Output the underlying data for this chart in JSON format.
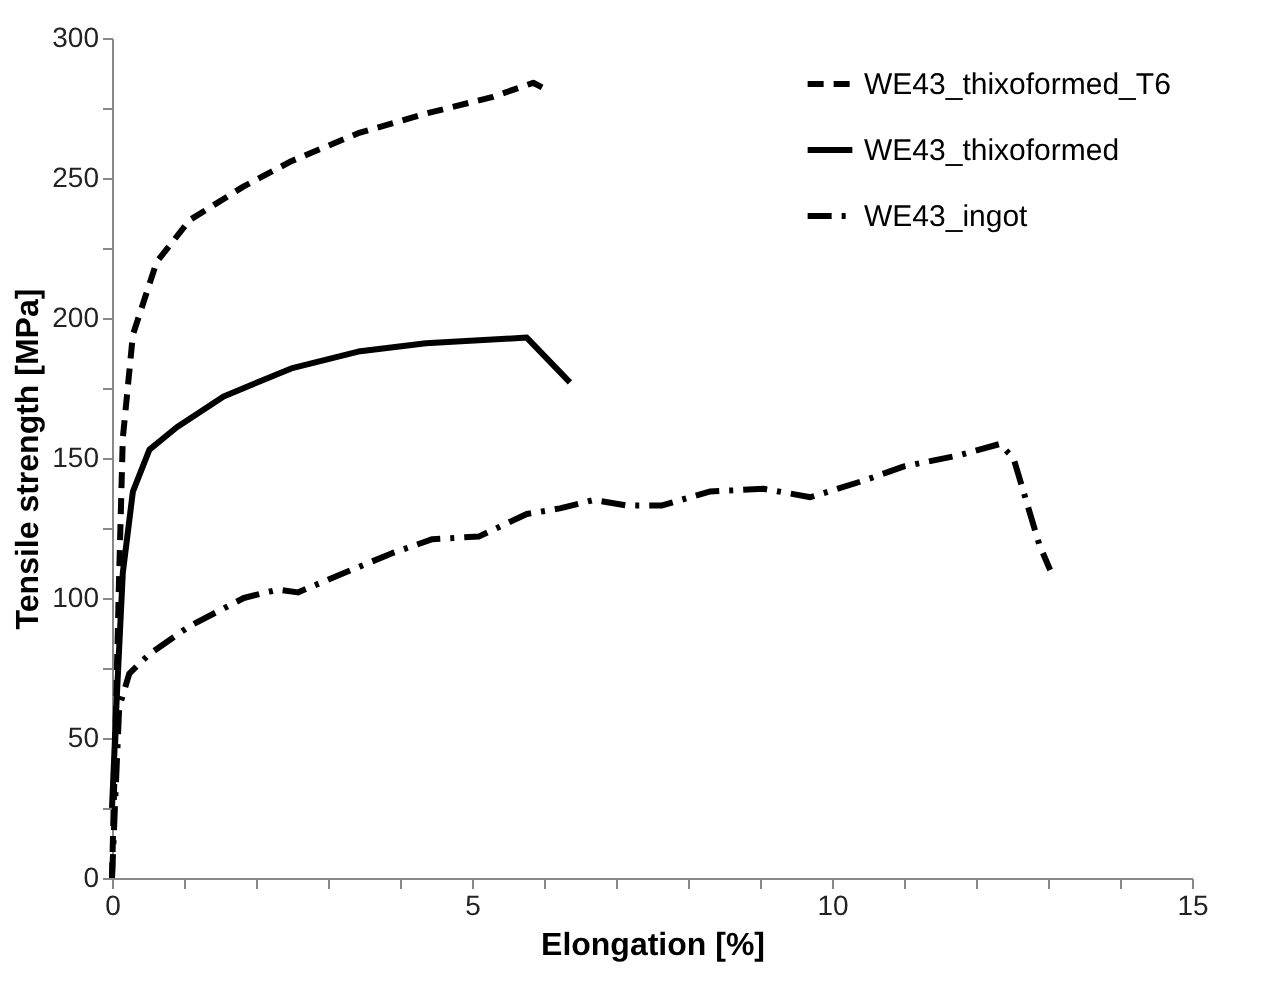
{
  "chart_data": {
    "type": "line",
    "xlabel": "Elongation [%]",
    "ylabel": "Tensile strength [MPa]",
    "xlim": [
      0,
      15
    ],
    "ylim": [
      0,
      300
    ],
    "xticks": [
      0,
      {
        "value": 1,
        "label": null
      },
      {
        "value": 2,
        "label": null
      },
      {
        "value": 3,
        "label": null
      },
      {
        "value": 4,
        "label": null
      },
      5,
      {
        "value": 6,
        "label": null
      },
      {
        "value": 7,
        "label": null
      },
      {
        "value": 8,
        "label": null
      },
      {
        "value": 9,
        "label": null
      },
      10,
      {
        "value": 11,
        "label": null
      },
      {
        "value": 12,
        "label": null
      },
      {
        "value": 13,
        "label": null
      },
      {
        "value": 14,
        "label": null
      },
      15
    ],
    "yticks": [
      0,
      {
        "value": 25,
        "label": null
      },
      50,
      {
        "value": 75,
        "label": null
      },
      100,
      {
        "value": 125,
        "label": null
      },
      150,
      {
        "value": 175,
        "label": null
      },
      200,
      {
        "value": 225,
        "label": null
      },
      250,
      {
        "value": 275,
        "label": null
      },
      300
    ],
    "grid": false,
    "legend": "top right",
    "marker": "none",
    "series": [
      {
        "name": "WE43_thixoformed_T6",
        "color": "#000000",
        "line_style": "dashed",
        "x": [
          0,
          0.1,
          0.15,
          0.29,
          0.62,
          1.08,
          1.83,
          2.49,
          3.42,
          4.36,
          5.29,
          5.85,
          6.08
        ],
        "values": [
          0,
          109,
          157,
          194,
          220,
          235,
          247,
          256,
          266,
          273,
          279,
          284,
          281
        ]
      },
      {
        "name": "WE43_thixoformed",
        "color": "#000000",
        "line_style": "solid",
        "x": [
          0,
          0.06,
          0.15,
          0.29,
          0.52,
          0.9,
          1.55,
          2.49,
          3.42,
          4.36,
          5.76,
          6.36
        ],
        "values": [
          25,
          61,
          109,
          138,
          153,
          161,
          172,
          182,
          188,
          191,
          193,
          177
        ]
      },
      {
        "name": "WE43_ingot",
        "color": "#000000",
        "line_style": "dashdot",
        "x": [
          0,
          0.04,
          0.1,
          0.24,
          0.52,
          1.08,
          1.83,
          2.3,
          2.58,
          3.23,
          3.89,
          4.45,
          5.1,
          5.76,
          6.22,
          6.69,
          7.16,
          7.63,
          8.3,
          9.05,
          9.7,
          10.45,
          11.0,
          11.77,
          12.33,
          12.52,
          12.88,
          13.03
        ],
        "values": [
          0,
          25,
          61,
          73,
          80,
          90,
          100,
          103,
          102,
          109,
          116,
          121,
          122,
          130,
          132,
          135,
          133,
          133,
          138,
          139,
          136,
          142,
          147,
          151,
          155,
          150,
          119,
          110
        ]
      }
    ]
  }
}
